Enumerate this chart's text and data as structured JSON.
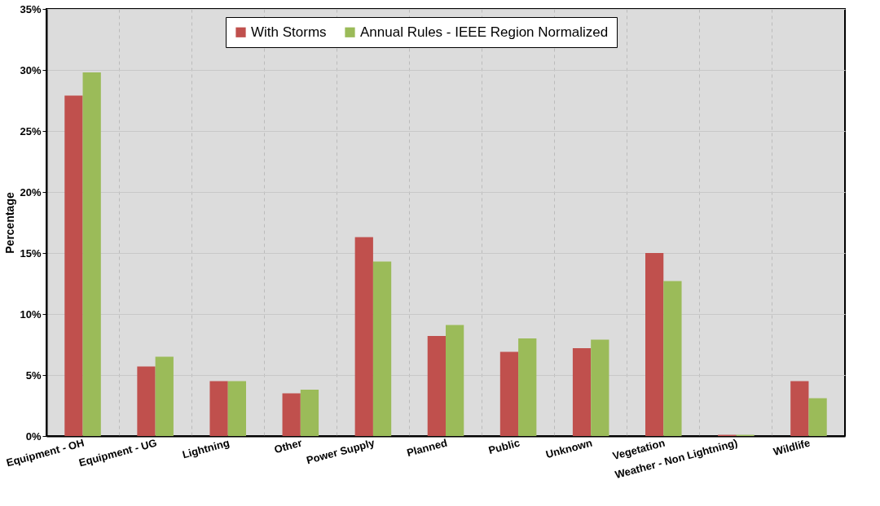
{
  "chart_data": {
    "type": "bar",
    "ylabel": "Percentage",
    "categories": [
      "Equipment - OH",
      "Equipment - UG",
      "Lightning",
      "Other",
      "Power Supply",
      "Planned",
      "Public",
      "Unknown",
      "Vegetation",
      "Weather - Non Lightning)",
      "Wildlife"
    ],
    "series": [
      {
        "name": "With Storms",
        "color": "#c0504d",
        "values": [
          27.9,
          5.7,
          4.5,
          3.5,
          16.3,
          8.2,
          6.9,
          7.2,
          15.0,
          0.1,
          4.5
        ]
      },
      {
        "name": "Annual Rules - IEEE Region Normalized",
        "color": "#9bbb59",
        "values": [
          29.8,
          6.5,
          4.5,
          3.8,
          14.3,
          9.1,
          8.0,
          7.9,
          12.7,
          0.1,
          3.1
        ]
      }
    ],
    "ylim": [
      0,
      35
    ],
    "yticks": [
      {
        "value": 0,
        "label": "0%"
      },
      {
        "value": 5,
        "label": "5%"
      },
      {
        "value": 10,
        "label": "10%"
      },
      {
        "value": 15,
        "label": "15%"
      },
      {
        "value": 20,
        "label": "20%"
      },
      {
        "value": 25,
        "label": "25%"
      },
      {
        "value": 30,
        "label": "30%"
      },
      {
        "value": 35,
        "label": "35%"
      }
    ],
    "grid": true,
    "legend": "top"
  }
}
